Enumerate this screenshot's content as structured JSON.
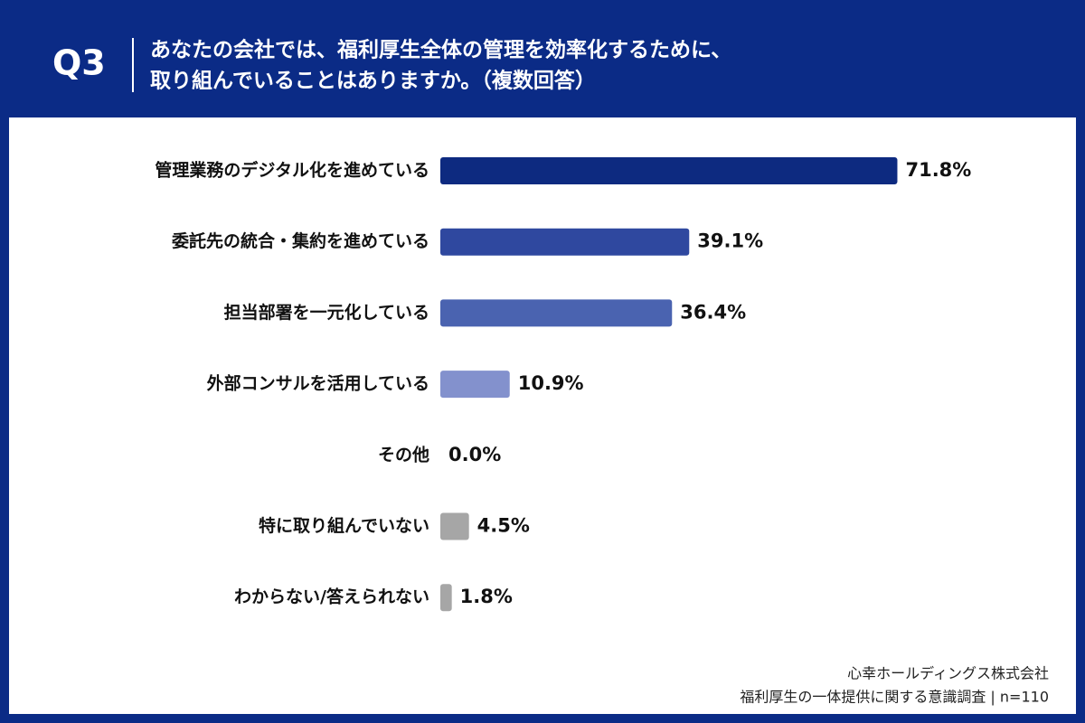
{
  "header": {
    "number": "Q3",
    "question": [
      "あなたの会社では、福利厚生全体の管理を効率化するために、",
      "取り組んでいることはありますか。（複数回答）"
    ]
  },
  "chart_data": {
    "type": "bar",
    "orientation": "horizontal",
    "categories": [
      "管理業務のデジタル化を進めている",
      "委託先の統合・集約を進めている",
      "担当部署を一元化している",
      "外部コンサルを活用している",
      "その他",
      "特に取り組んでいない",
      "わからない/答えられない"
    ],
    "values": [
      71.8,
      39.1,
      36.4,
      10.9,
      0.0,
      4.5,
      1.8
    ],
    "value_labels": [
      "71.8%",
      "39.1%",
      "36.4%",
      "10.9%",
      "0.0%",
      "4.5%",
      "1.8%"
    ],
    "colors": [
      "#0d2a80",
      "#2f489f",
      "#4a63b0",
      "#8391cd",
      "#a6a6a6",
      "#a6a6a6",
      "#a6a6a6"
    ]
  },
  "footer": {
    "company": "心幸ホールディングス株式会社",
    "survey": "福利厚生の一体提供に関する意識調査 | n=110"
  }
}
